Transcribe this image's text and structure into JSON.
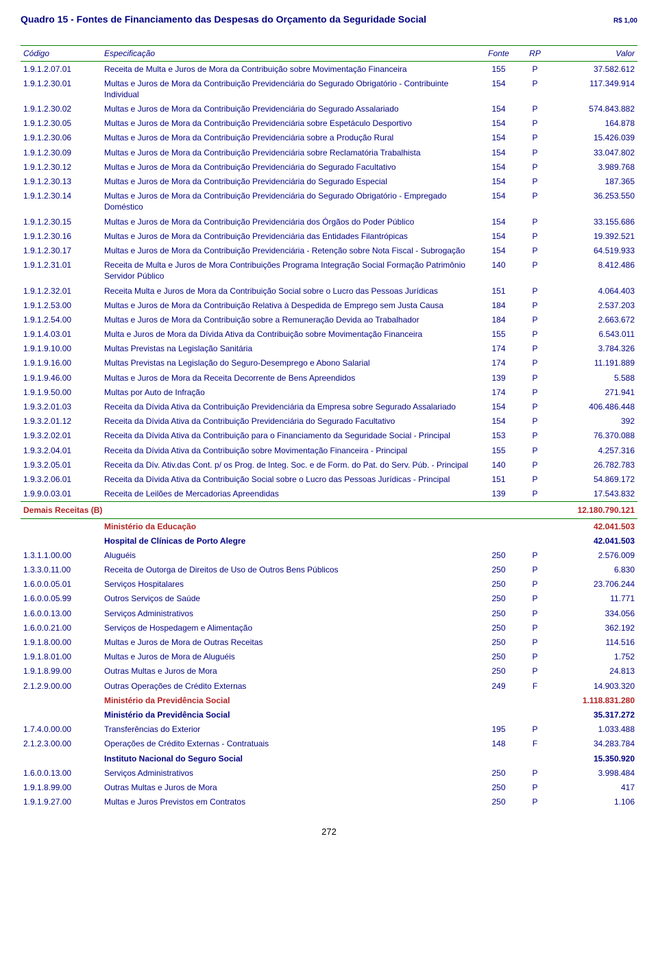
{
  "title": "Quadro 15 - Fontes de Financiamento das Despesas do Orçamento da Seguridade Social",
  "currency": "R$ 1,00",
  "headers": {
    "codigo": "Código",
    "especificacao": "Especificação",
    "fonte": "Fonte",
    "rp": "RP",
    "valor": "Valor"
  },
  "rows": [
    {
      "codigo": "1.9.1.2.07.01",
      "espec": "Receita de Multa e Juros de Mora da Contribuição sobre Movimentação Financeira",
      "fonte": "155",
      "rp": "P",
      "valor": "37.582.612"
    },
    {
      "codigo": "1.9.1.2.30.01",
      "espec": "Multas e Juros de Mora  da Contribuição Previdenciária do Segurado Obrigatório -  Contribuinte Individual",
      "fonte": "154",
      "rp": "P",
      "valor": "117.349.914"
    },
    {
      "codigo": "1.9.1.2.30.02",
      "espec": "Multas e Juros de Mora da Contribuição Previdenciária do Segurado Assalariado",
      "fonte": "154",
      "rp": "P",
      "valor": "574.843.882"
    },
    {
      "codigo": "1.9.1.2.30.05",
      "espec": "Multas e Juros de Mora da Contribuição Previdenciária sobre Espetáculo Desportivo",
      "fonte": "154",
      "rp": "P",
      "valor": "164.878"
    },
    {
      "codigo": "1.9.1.2.30.06",
      "espec": "Multas e Juros de Mora da Contribuição Previdenciária sobre a Produção Rural",
      "fonte": "154",
      "rp": "P",
      "valor": "15.426.039"
    },
    {
      "codigo": "1.9.1.2.30.09",
      "espec": "Multas e Juros de Mora da Contribuição Previdenciária sobre Reclamatória Trabalhista",
      "fonte": "154",
      "rp": "P",
      "valor": "33.047.802"
    },
    {
      "codigo": "1.9.1.2.30.12",
      "espec": "Multas e Juros de Mora da Contribuição Previdenciária do Segurado Facultativo",
      "fonte": "154",
      "rp": "P",
      "valor": "3.989.768"
    },
    {
      "codigo": "1.9.1.2.30.13",
      "espec": "Multas e Juros de Mora da Contribuição Previdenciária do Segurado Especial",
      "fonte": "154",
      "rp": "P",
      "valor": "187.365"
    },
    {
      "codigo": "1.9.1.2.30.14",
      "espec": "Multas e Juros de Mora da Contribuição Previdenciária do Segurado Obrigatório - Empregado Doméstico",
      "fonte": "154",
      "rp": "P",
      "valor": "36.253.550"
    },
    {
      "codigo": "1.9.1.2.30.15",
      "espec": "Multas e Juros de Mora da Contribuição Previdenciária dos Órgãos do Poder Público",
      "fonte": "154",
      "rp": "P",
      "valor": "33.155.686"
    },
    {
      "codigo": "1.9.1.2.30.16",
      "espec": "Multas e Juros de Mora da Contribuição Previdenciária das Entidades Filantrópicas",
      "fonte": "154",
      "rp": "P",
      "valor": "19.392.521"
    },
    {
      "codigo": "1.9.1.2.30.17",
      "espec": "Multas e Juros de Mora da Contribuição Previdenciária - Retenção sobre Nota Fiscal - Subrogação",
      "fonte": "154",
      "rp": "P",
      "valor": "64.519.933"
    },
    {
      "codigo": "1.9.1.2.31.01",
      "espec": "Receita de Multa e Juros de Mora Contribuições Programa Integração Social Formação Patrimônio Servidor Público",
      "fonte": "140",
      "rp": "P",
      "valor": "8.412.486"
    },
    {
      "codigo": "1.9.1.2.32.01",
      "espec": "Receita Multa e Juros de Mora da Contribuição Social sobre o Lucro das Pessoas Jurídicas",
      "fonte": "151",
      "rp": "P",
      "valor": "4.064.403"
    },
    {
      "codigo": "1.9.1.2.53.00",
      "espec": "Multas e Juros de Mora da Contribuição Relativa à Despedida de Emprego sem Justa Causa",
      "fonte": "184",
      "rp": "P",
      "valor": "2.537.203"
    },
    {
      "codigo": "1.9.1.2.54.00",
      "espec": "Multas e Juros de Mora da Contribuição sobre a Remuneração  Devida ao Trabalhador",
      "fonte": "184",
      "rp": "P",
      "valor": "2.663.672"
    },
    {
      "codigo": "1.9.1.4.03.01",
      "espec": "Multa e Juros de Mora da Dívida Ativa da Contribuição sobre Movimentação Financeira",
      "fonte": "155",
      "rp": "P",
      "valor": "6.543.011"
    },
    {
      "codigo": "1.9.1.9.10.00",
      "espec": "Multas Previstas na Legislação Sanitária",
      "fonte": "174",
      "rp": "P",
      "valor": "3.784.326"
    },
    {
      "codigo": "1.9.1.9.16.00",
      "espec": "Multas Previstas na Legislação do Seguro-Desemprego e Abono Salarial",
      "fonte": "174",
      "rp": "P",
      "valor": "11.191.889"
    },
    {
      "codigo": "1.9.1.9.46.00",
      "espec": "Multas e Juros de Mora da Receita Decorrente de Bens Apreendidos",
      "fonte": "139",
      "rp": "P",
      "valor": "5.588"
    },
    {
      "codigo": "1.9.1.9.50.00",
      "espec": "Multas por Auto de Infração",
      "fonte": "174",
      "rp": "P",
      "valor": "271.941"
    },
    {
      "codigo": "1.9.3.2.01.03",
      "espec": "Receita da Dívida Ativa da Contribuição Previdenciária da Empresa sobre Segurado Assalariado",
      "fonte": "154",
      "rp": "P",
      "valor": "406.486.448"
    },
    {
      "codigo": "1.9.3.2.01.12",
      "espec": "Receita da Dívida Ativa da Contribuição Previdenciária do Segurado Facultativo",
      "fonte": "154",
      "rp": "P",
      "valor": "392"
    },
    {
      "codigo": "1.9.3.2.02.01",
      "espec": "Receita da Dívida Ativa da Contribuição para o Financiamento da Seguridade Social - Principal",
      "fonte": "153",
      "rp": "P",
      "valor": "76.370.088"
    },
    {
      "codigo": "1.9.3.2.04.01",
      "espec": "Receita da Dívida Ativa da Contribuição sobre Movimentação Financeira - Principal",
      "fonte": "155",
      "rp": "P",
      "valor": "4.257.316"
    },
    {
      "codigo": "1.9.3.2.05.01",
      "espec": "Receita da Dív. Ativ.das Cont. p/ os Prog. de Integ. Soc. e de Form. do Pat. do Serv. Púb. - Principal",
      "fonte": "140",
      "rp": "P",
      "valor": "26.782.783"
    },
    {
      "codigo": "1.9.3.2.06.01",
      "espec": "Receita da Dívida Ativa da Contribuição Social sobre o Lucro das Pessoas Jurídicas - Principal",
      "fonte": "151",
      "rp": "P",
      "valor": "54.869.172"
    },
    {
      "codigo": "1.9.9.0.03.01",
      "espec": "Receita de Leilões de Mercadorias Apreendidas",
      "fonte": "139",
      "rp": "P",
      "valor": "17.543.832"
    }
  ],
  "demais": {
    "label": "Demais Receitas (B)",
    "valor": "12.180.790.121"
  },
  "sections": [
    {
      "type": "section-red",
      "espec": "Ministério da Educação",
      "valor": "42.041.503"
    },
    {
      "type": "section",
      "espec": "Hospital de Clínicas de Porto Alegre",
      "valor": "42.041.503"
    },
    {
      "codigo": "1.3.1.1.00.00",
      "espec": "Aluguéis",
      "fonte": "250",
      "rp": "P",
      "valor": "2.576.009"
    },
    {
      "codigo": "1.3.3.0.11.00",
      "espec": "Receita de Outorga de Direitos de Uso de Outros Bens Públicos",
      "fonte": "250",
      "rp": "P",
      "valor": "6.830"
    },
    {
      "codigo": "1.6.0.0.05.01",
      "espec": "Serviços Hospitalares",
      "fonte": "250",
      "rp": "P",
      "valor": "23.706.244"
    },
    {
      "codigo": "1.6.0.0.05.99",
      "espec": "Outros Serviços de Saúde",
      "fonte": "250",
      "rp": "P",
      "valor": "11.771"
    },
    {
      "codigo": "1.6.0.0.13.00",
      "espec": "Serviços Administrativos",
      "fonte": "250",
      "rp": "P",
      "valor": "334.056"
    },
    {
      "codigo": "1.6.0.0.21.00",
      "espec": "Serviços de Hospedagem e Alimentação",
      "fonte": "250",
      "rp": "P",
      "valor": "362.192"
    },
    {
      "codigo": "1.9.1.8.00.00",
      "espec": "Multas e Juros de Mora de Outras Receitas",
      "fonte": "250",
      "rp": "P",
      "valor": "114.516"
    },
    {
      "codigo": "1.9.1.8.01.00",
      "espec": "Multas e Juros de Mora de Aluguéis",
      "fonte": "250",
      "rp": "P",
      "valor": "1.752"
    },
    {
      "codigo": "1.9.1.8.99.00",
      "espec": "Outras Multas e Juros de Mora",
      "fonte": "250",
      "rp": "P",
      "valor": "24.813"
    },
    {
      "codigo": "2.1.2.9.00.00",
      "espec": "Outras Operações de Crédito Externas",
      "fonte": "249",
      "rp": "F",
      "valor": "14.903.320"
    },
    {
      "type": "section-red",
      "espec": "Ministério da Previdência Social",
      "valor": "1.118.831.280"
    },
    {
      "type": "section",
      "espec": "Ministério da Previdência Social",
      "valor": "35.317.272"
    },
    {
      "codigo": "1.7.4.0.00.00",
      "espec": "Transferências do Exterior",
      "fonte": "195",
      "rp": "P",
      "valor": "1.033.488"
    },
    {
      "codigo": "2.1.2.3.00.00",
      "espec": "Operações de Crédito Externas - Contratuais",
      "fonte": "148",
      "rp": "F",
      "valor": "34.283.784"
    },
    {
      "type": "section",
      "espec": "Instituto Nacional do Seguro Social",
      "valor": "15.350.920"
    },
    {
      "codigo": "1.6.0.0.13.00",
      "espec": "Serviços Administrativos",
      "fonte": "250",
      "rp": "P",
      "valor": "3.998.484"
    },
    {
      "codigo": "1.9.1.8.99.00",
      "espec": "Outras Multas e Juros de Mora",
      "fonte": "250",
      "rp": "P",
      "valor": "417"
    },
    {
      "codigo": "1.9.1.9.27.00",
      "espec": "Multas e Juros Previstos em Contratos",
      "fonte": "250",
      "rp": "P",
      "valor": "1.106"
    }
  ],
  "pageNum": "272"
}
